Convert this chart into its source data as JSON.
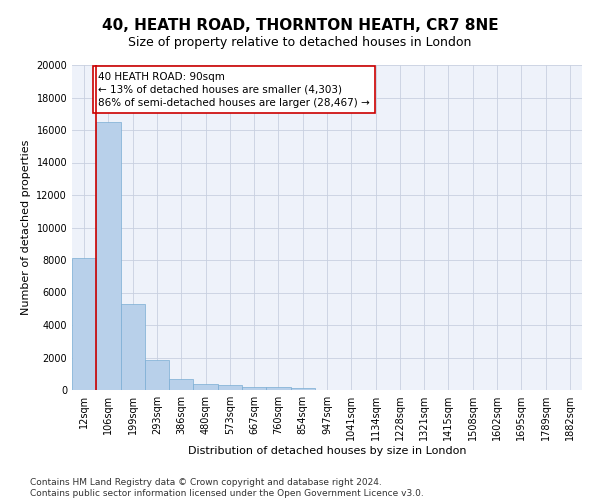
{
  "title_line1": "40, HEATH ROAD, THORNTON HEATH, CR7 8NE",
  "title_line2": "Size of property relative to detached houses in London",
  "xlabel": "Distribution of detached houses by size in London",
  "ylabel": "Number of detached properties",
  "categories": [
    "12sqm",
    "106sqm",
    "199sqm",
    "293sqm",
    "386sqm",
    "480sqm",
    "573sqm",
    "667sqm",
    "760sqm",
    "854sqm",
    "947sqm",
    "1041sqm",
    "1134sqm",
    "1228sqm",
    "1321sqm",
    "1415sqm",
    "1508sqm",
    "1602sqm",
    "1695sqm",
    "1789sqm",
    "1882sqm"
  ],
  "values": [
    8100,
    16500,
    5300,
    1850,
    700,
    380,
    280,
    200,
    170,
    130,
    0,
    0,
    0,
    0,
    0,
    0,
    0,
    0,
    0,
    0,
    0
  ],
  "bar_color": "#b8d0ea",
  "bar_edge_color": "#7aadd4",
  "annotation_text": "40 HEATH ROAD: 90sqm\n← 13% of detached houses are smaller (4,303)\n86% of semi-detached houses are larger (28,467) →",
  "vline_color": "#cc0000",
  "vline_x": 0.5,
  "ylim": [
    0,
    20000
  ],
  "yticks": [
    0,
    2000,
    4000,
    6000,
    8000,
    10000,
    12000,
    14000,
    16000,
    18000,
    20000
  ],
  "annotation_box_facecolor": "#ffffff",
  "annotation_box_edgecolor": "#cc0000",
  "footnote": "Contains HM Land Registry data © Crown copyright and database right 2024.\nContains public sector information licensed under the Open Government Licence v3.0.",
  "title_fontsize": 11,
  "subtitle_fontsize": 9,
  "axis_label_fontsize": 8,
  "tick_fontsize": 7,
  "annotation_fontsize": 7.5,
  "footnote_fontsize": 6.5,
  "bg_color": "#eef2fa",
  "grid_color": "#c8d0e0"
}
